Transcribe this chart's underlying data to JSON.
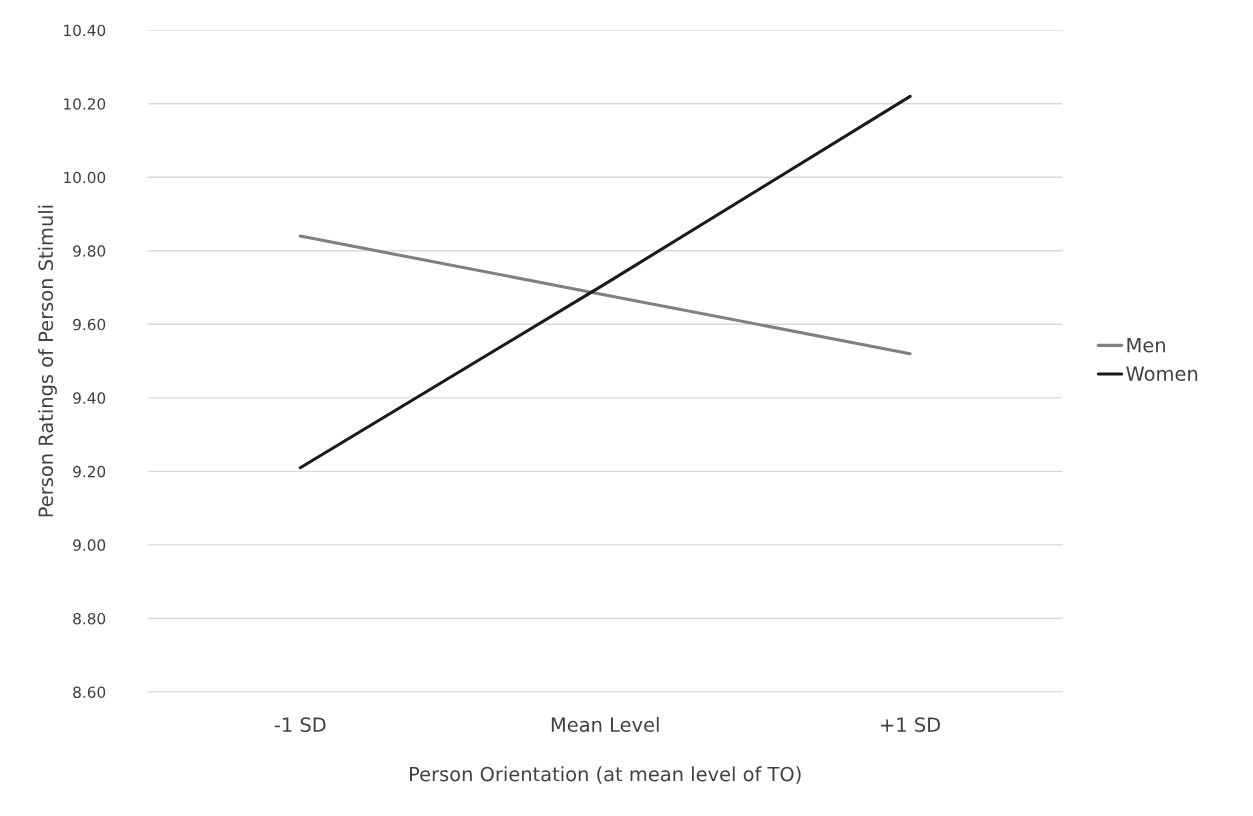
{
  "chart_data": {
    "type": "line",
    "xlabel": "Person Orientation (at mean level of TO)",
    "ylabel": "Person Ratings of Person Stimuli",
    "categories": [
      "-1 SD",
      "Mean Level",
      "+1 SD"
    ],
    "series": [
      {
        "name": "Men",
        "color": "#808080",
        "values": [
          9.84,
          9.68,
          9.52
        ]
      },
      {
        "name": "Women",
        "color": "#1a1a1a",
        "values": [
          9.21,
          9.71,
          10.22
        ]
      }
    ],
    "ylim": [
      8.6,
      10.4
    ],
    "yticks": [
      {
        "value": 8.6,
        "label": "8.60"
      },
      {
        "value": 8.8,
        "label": "8.80"
      },
      {
        "value": 9.0,
        "label": "9.00"
      },
      {
        "value": 9.2,
        "label": "9.20"
      },
      {
        "value": 9.4,
        "label": "9.40"
      },
      {
        "value": 9.6,
        "label": "9.60"
      },
      {
        "value": 9.8,
        "label": "9.80"
      },
      {
        "value": 10.0,
        "label": "10.00"
      },
      {
        "value": 10.2,
        "label": "10.20"
      },
      {
        "value": 10.4,
        "label": "10.40"
      }
    ],
    "grid": "y",
    "legend": "right",
    "marker": "none",
    "line_style": "solid"
  }
}
